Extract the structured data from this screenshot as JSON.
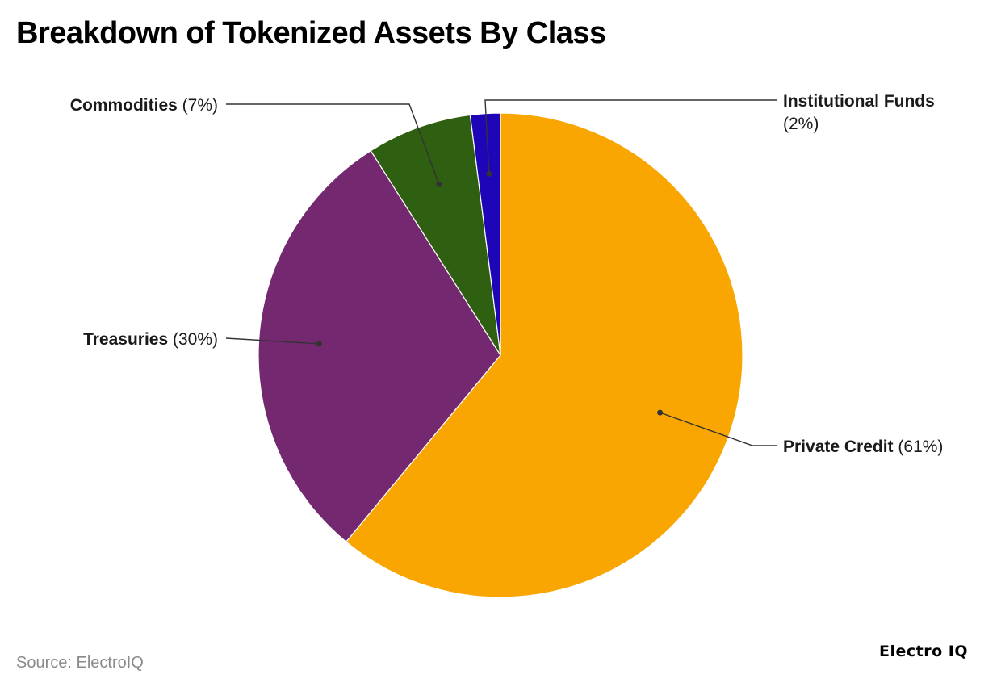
{
  "chart_data": {
    "type": "pie",
    "title": "Breakdown of Tokenized Assets By Class",
    "slices": [
      {
        "name": "Private Credit",
        "value": 61,
        "value_label": "(61%)",
        "color": "#f9a602"
      },
      {
        "name": "Treasuries",
        "value": 30,
        "value_label": "(30%)",
        "color": "#73286f"
      },
      {
        "name": "Commodities",
        "value": 7,
        "value_label": "(7%)",
        "color": "#2f5f10"
      },
      {
        "name": "Institutional Funds",
        "value": 2,
        "value_label": "(2%)",
        "color": "#1e05b8"
      }
    ],
    "legend": "none",
    "grid": false
  },
  "footer": {
    "source": "Source: ElectroIQ",
    "brand": "Electro IQ"
  }
}
